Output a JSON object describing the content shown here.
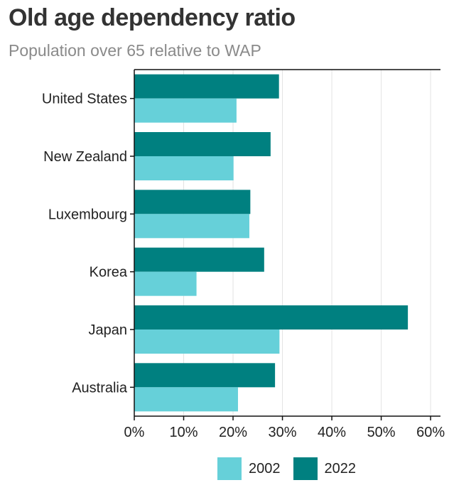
{
  "header": {
    "title": "Old age dependency ratio",
    "subtitle": "Population over 65 relative to WAP"
  },
  "chart_data": {
    "type": "bar",
    "orientation": "horizontal",
    "title": "Old age dependency ratio",
    "subtitle": "Population over 65 relative to WAP",
    "categories": [
      "United States",
      "New Zealand",
      "Luxembourg",
      "Korea",
      "Japan",
      "Australia"
    ],
    "series": [
      {
        "name": "2002",
        "color": "#66d0d9",
        "values": [
          20.7,
          20.1,
          23.3,
          12.6,
          29.4,
          21.0
        ]
      },
      {
        "name": "2022",
        "color": "#008080",
        "values": [
          29.3,
          27.6,
          23.5,
          26.3,
          55.4,
          28.5
        ]
      }
    ],
    "xlim": [
      0,
      62
    ],
    "xticks": [
      0,
      10,
      20,
      30,
      40,
      50,
      60
    ],
    "xtick_labels": [
      "0%",
      "10%",
      "20%",
      "30%",
      "40%",
      "50%",
      "60%"
    ],
    "grid": "vertical",
    "legend_position": "bottom"
  }
}
